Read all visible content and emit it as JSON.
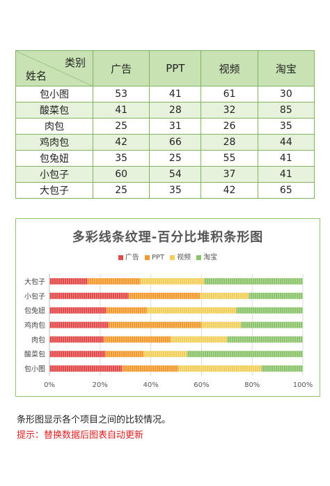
{
  "table": {
    "corner_category": "类别",
    "corner_name": "姓名",
    "headers": [
      "广告",
      "PPT",
      "视频",
      "淘宝"
    ],
    "rows": [
      {
        "name": "包小图",
        "values": [
          53,
          41,
          61,
          30
        ]
      },
      {
        "name": "酸菜包",
        "values": [
          41,
          28,
          32,
          85
        ]
      },
      {
        "name": "肉包",
        "values": [
          25,
          31,
          26,
          35
        ]
      },
      {
        "name": "鸡肉包",
        "values": [
          42,
          66,
          28,
          44
        ]
      },
      {
        "name": "包兔妞",
        "values": [
          35,
          25,
          55,
          41
        ]
      },
      {
        "name": "小包子",
        "values": [
          60,
          54,
          37,
          41
        ]
      },
      {
        "name": "大包子",
        "values": [
          25,
          35,
          42,
          65
        ]
      }
    ]
  },
  "chart_data": {
    "type": "bar",
    "orientation": "horizontal",
    "stacking": "percent",
    "title": "多彩线条纹理-百分比堆积条形图",
    "categories": [
      "大包子",
      "小包子",
      "包兔妞",
      "鸡肉包",
      "肉包",
      "酸菜包",
      "包小图"
    ],
    "series": [
      {
        "name": "广告",
        "color": "#e24a4a",
        "values": [
          25,
          60,
          35,
          42,
          25,
          41,
          53
        ]
      },
      {
        "name": "PPT",
        "color": "#f39a2e",
        "values": [
          35,
          54,
          25,
          66,
          31,
          28,
          41
        ]
      },
      {
        "name": "视频",
        "color": "#f2cf5b",
        "values": [
          42,
          37,
          55,
          28,
          26,
          32,
          61
        ]
      },
      {
        "name": "淘宝",
        "color": "#8cc46b",
        "values": [
          65,
          41,
          41,
          44,
          35,
          85,
          30
        ]
      }
    ],
    "x_ticks": [
      "0%",
      "20%",
      "40%",
      "60%",
      "80%",
      "100%"
    ],
    "xlim": [
      0,
      100
    ],
    "legend": "top",
    "grid": true
  },
  "notes": {
    "description": "条形图显示各个项目之间的比较情况。",
    "tip": "提示：替换数据后图表自动更新"
  }
}
